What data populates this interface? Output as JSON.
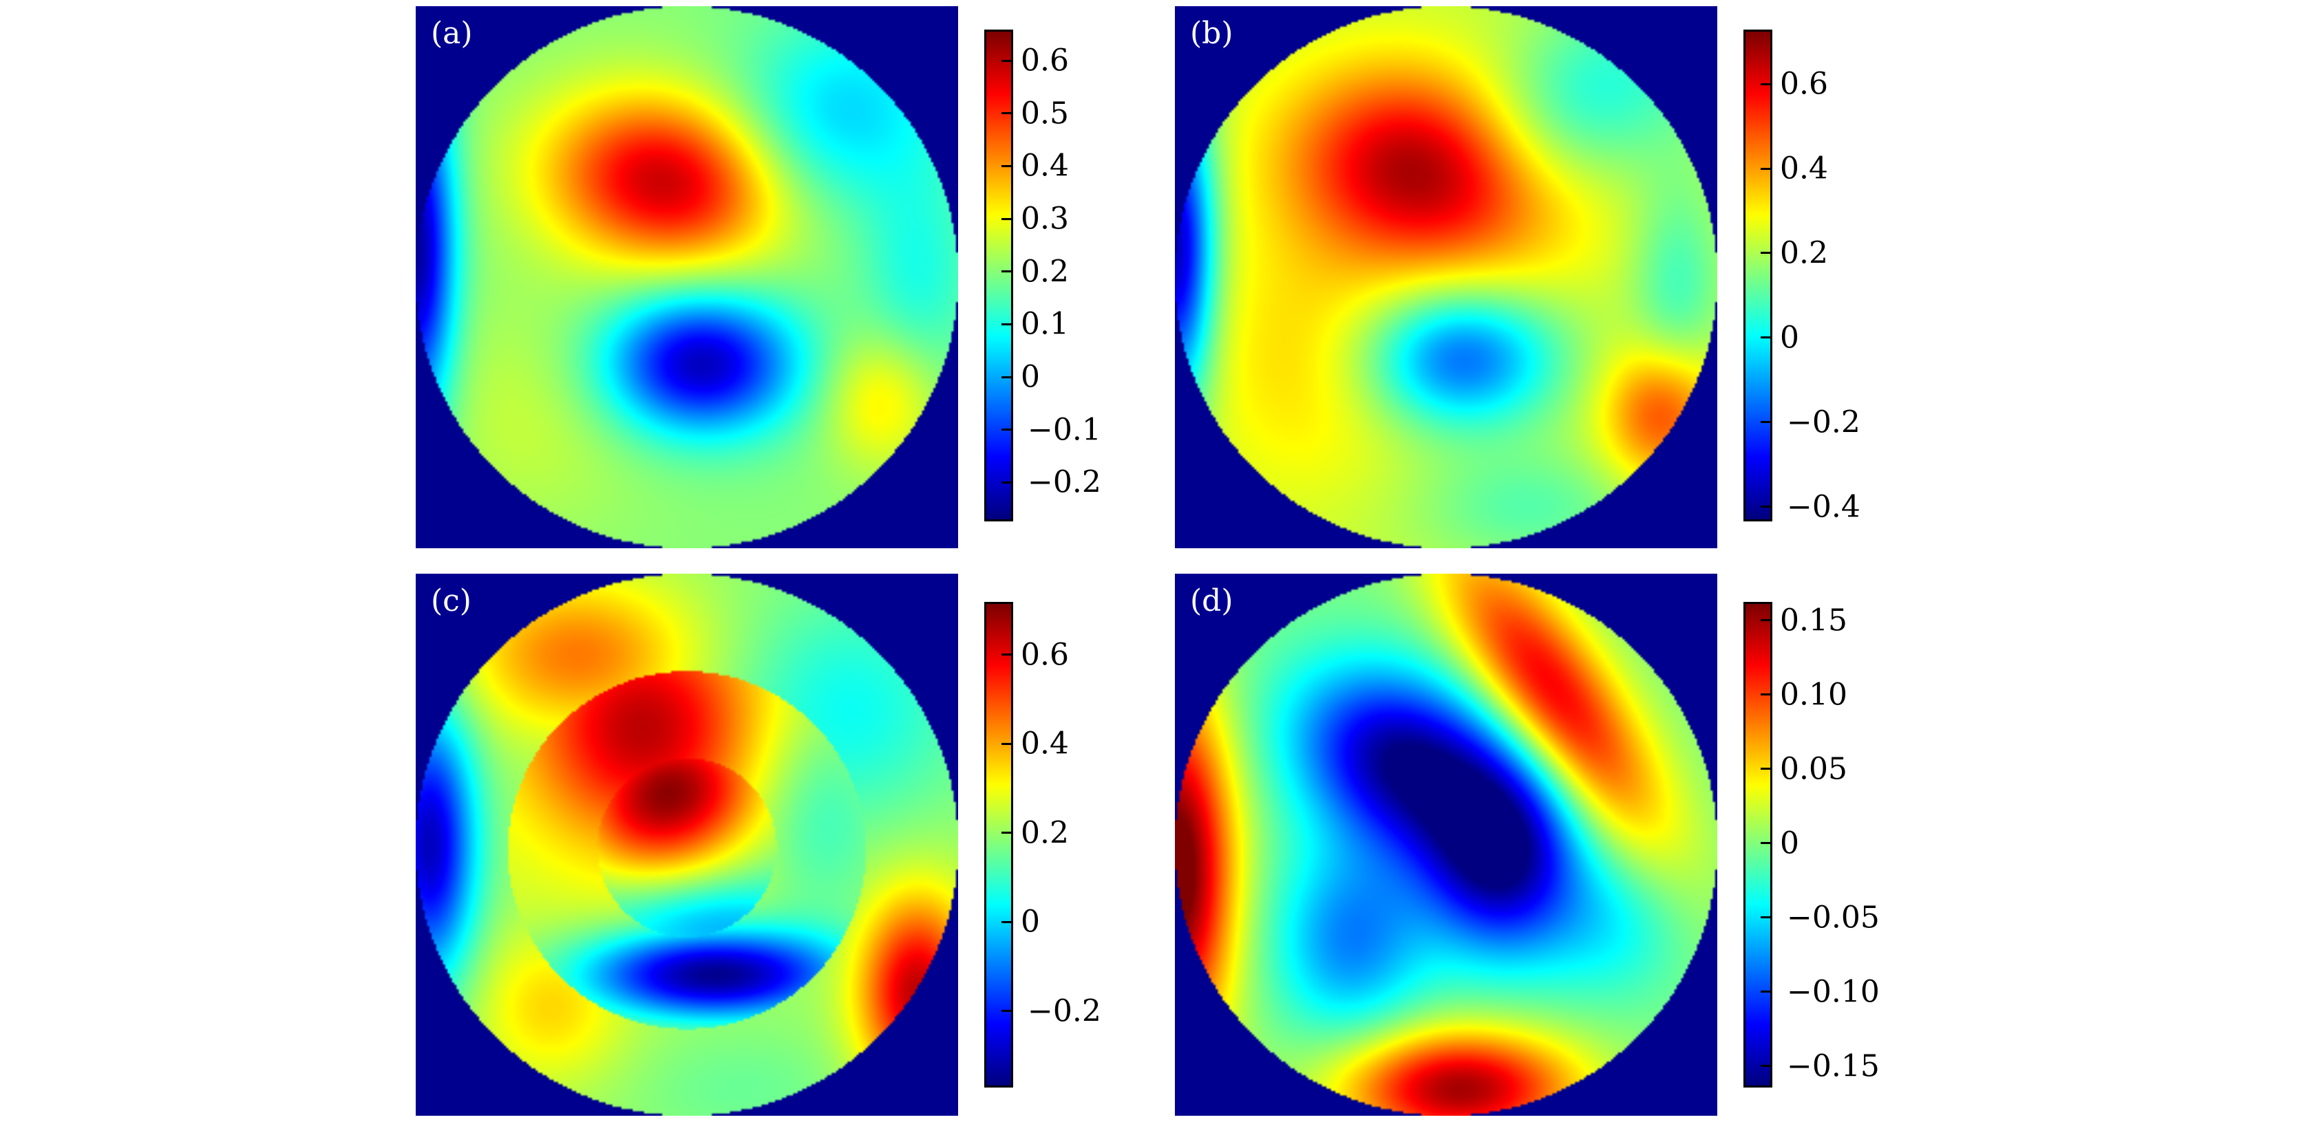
{
  "chart_data": [
    {
      "type": "heatmap",
      "panel_label": "(a)",
      "colormap": "jet",
      "domain": "circular",
      "background_color": "#00008f",
      "colorbar": {
        "range": [
          -0.27,
          0.655
        ],
        "ticks": [
          0.6,
          0.5,
          0.4,
          0.3,
          0.2,
          0.1,
          0,
          -0.1,
          -0.2
        ],
        "tick_labels": [
          "0.6",
          "0.5",
          "0.4",
          "0.3",
          "0.2",
          "0.1",
          "0",
          "−0.1",
          "−0.2"
        ]
      }
    },
    {
      "type": "heatmap",
      "panel_label": "(b)",
      "colormap": "jet",
      "domain": "circular",
      "background_color": "#00008f",
      "colorbar": {
        "range": [
          -0.43,
          0.724
        ],
        "ticks": [
          0.6,
          0.4,
          0.2,
          0,
          -0.2,
          -0.4
        ],
        "tick_labels": [
          "0.6",
          "0.4",
          "0.2",
          "0",
          "−0.2",
          "−0.4"
        ]
      }
    },
    {
      "type": "heatmap",
      "panel_label": "(c)",
      "colormap": "jet",
      "domain": "circular",
      "background_color": "#00008f",
      "colorbar": {
        "range": [
          -0.367,
          0.714
        ],
        "ticks": [
          0.6,
          0.4,
          0.2,
          0,
          -0.2
        ],
        "tick_labels": [
          "0.6",
          "0.4",
          "0.2",
          "0",
          "−0.2"
        ]
      }
    },
    {
      "type": "heatmap",
      "panel_label": "(d)",
      "colormap": "jet",
      "domain": "circular",
      "background_color": "#00008f",
      "colorbar": {
        "range": [
          -0.163,
          0.161
        ],
        "ticks": [
          0.15,
          0.1,
          0.05,
          0,
          -0.05,
          -0.1,
          -0.15
        ],
        "tick_labels": [
          "0.15",
          "0.10",
          "0.05",
          "0",
          "−0.05",
          "−0.10",
          "−0.15"
        ]
      }
    }
  ]
}
